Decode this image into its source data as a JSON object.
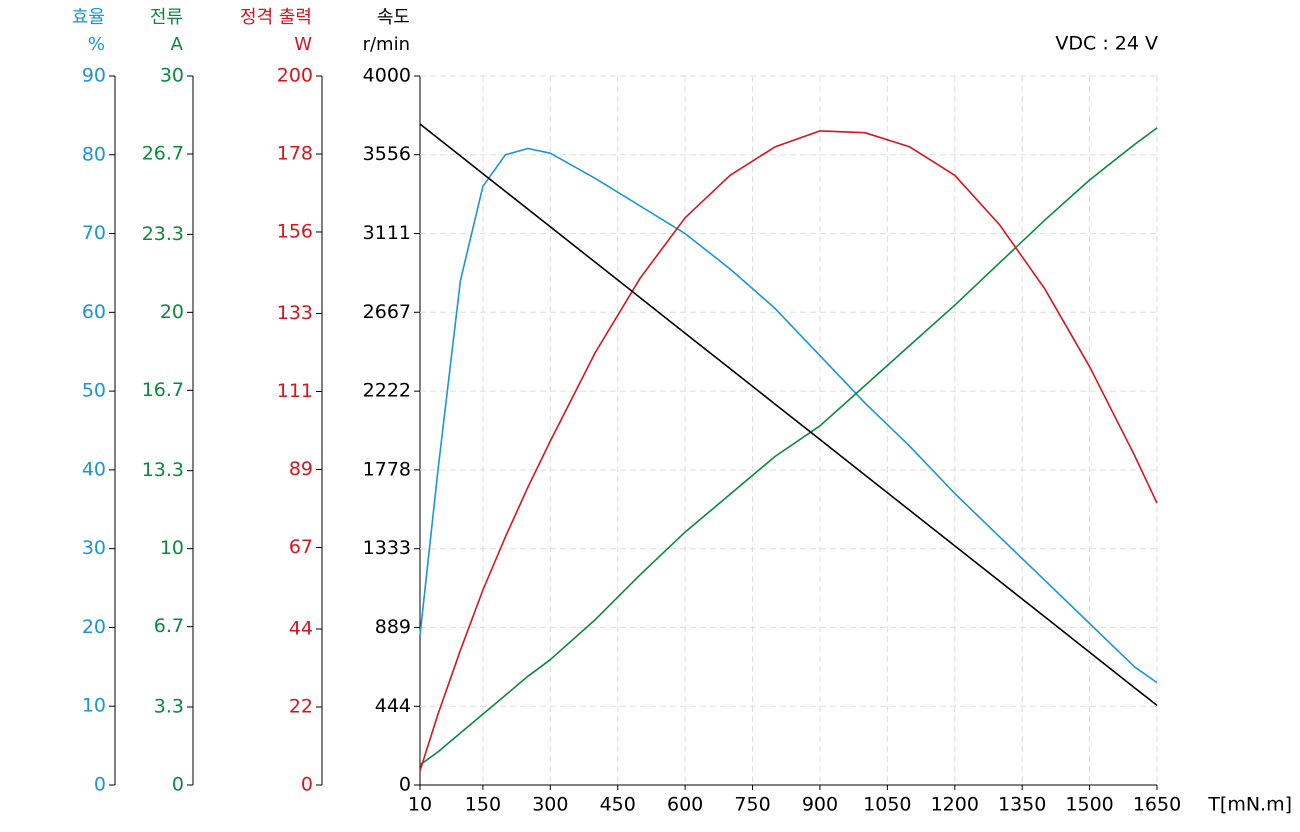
{
  "chart_data": {
    "type": "line",
    "annotation": "VDC : 24 V",
    "xlabel": "T[mN.m]",
    "grid": true,
    "x": [
      10,
      50,
      100,
      150,
      200,
      250,
      300,
      400,
      500,
      600,
      700,
      800,
      900,
      1000,
      1100,
      1200,
      1300,
      1400,
      1500,
      1600,
      1650
    ],
    "xlim": [
      10,
      1650
    ],
    "xticks": [
      10,
      150,
      300,
      450,
      600,
      750,
      900,
      1050,
      1200,
      1350,
      1500,
      1650
    ],
    "series": [
      {
        "name": "효율",
        "unit": "%",
        "color": "#1a96d4",
        "ylim": [
          0,
          90
        ],
        "yticks": [
          0,
          10,
          20,
          30,
          40,
          50,
          60,
          70,
          80,
          90
        ],
        "values": [
          19,
          40,
          64,
          76,
          80,
          80.8,
          80.2,
          77,
          73.5,
          70,
          65.5,
          60.5,
          54.5,
          48.5,
          43,
          37,
          31.5,
          26,
          20.5,
          15,
          13
        ]
      },
      {
        "name": "전류",
        "unit": "A",
        "color": "#0a8a3a",
        "ylim": [
          0,
          30
        ],
        "yticks": [
          0,
          3.3,
          6.7,
          10,
          13.3,
          16.7,
          20,
          23.3,
          26.7,
          30
        ],
        "values": [
          0.85,
          1.4,
          2.2,
          3.0,
          3.8,
          4.6,
          5.3,
          7.0,
          8.9,
          10.7,
          12.3,
          13.9,
          15.2,
          16.9,
          18.6,
          20.3,
          22.1,
          23.9,
          25.6,
          27.1,
          27.8
        ]
      },
      {
        "name": "정격 출력",
        "unit": "W",
        "color": "#d9141e",
        "ylim": [
          0,
          200
        ],
        "yticks": [
          0,
          22,
          44,
          67,
          89,
          111,
          133,
          156,
          178,
          200
        ],
        "values": [
          4,
          20,
          38,
          55,
          70,
          84,
          97,
          122,
          143,
          160,
          172,
          180,
          184.5,
          184,
          180,
          172,
          158,
          140,
          118,
          93,
          79.5
        ]
      },
      {
        "name": "속도",
        "unit": "r/min",
        "color": "#000000",
        "ylim": [
          0,
          4000
        ],
        "yticks": [
          0,
          444,
          889,
          1333,
          1778,
          2222,
          2667,
          3111,
          3556,
          4000
        ],
        "values": [
          3729,
          3649,
          3549,
          3449,
          3349,
          3249,
          3149,
          2949,
          2749,
          2549,
          2349,
          2149,
          1949,
          1749,
          1549,
          1349,
          1149,
          949,
          749,
          549,
          449
        ]
      }
    ]
  }
}
